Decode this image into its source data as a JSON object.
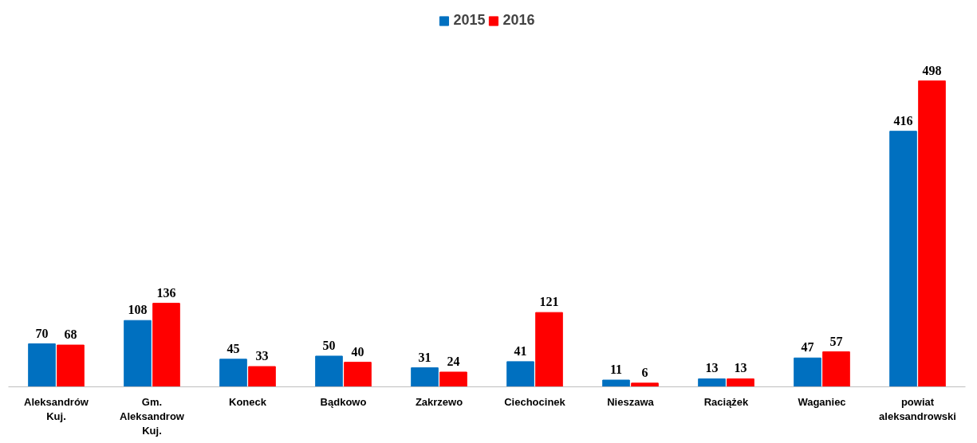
{
  "chart_data": {
    "type": "bar",
    "categories": [
      "Aleksandrów\nKuj.",
      "Gm.\nAleksandrow\nKuj.",
      "Koneck",
      "Bądkowo",
      "Zakrzewo",
      "Ciechocinek",
      "Nieszawa",
      "Raciążek",
      "Waganiec",
      "powiat\naleksandrowski"
    ],
    "series": [
      {
        "name": "2015",
        "color": "#0070c0",
        "values": [
          70,
          108,
          45,
          50,
          31,
          41,
          11,
          13,
          47,
          416
        ]
      },
      {
        "name": "2016",
        "color": "#ff0000",
        "values": [
          68,
          136,
          33,
          40,
          24,
          121,
          6,
          13,
          57,
          498
        ]
      }
    ],
    "data_labels": true,
    "legend": "top",
    "grid": false,
    "tick_labels": "x"
  }
}
